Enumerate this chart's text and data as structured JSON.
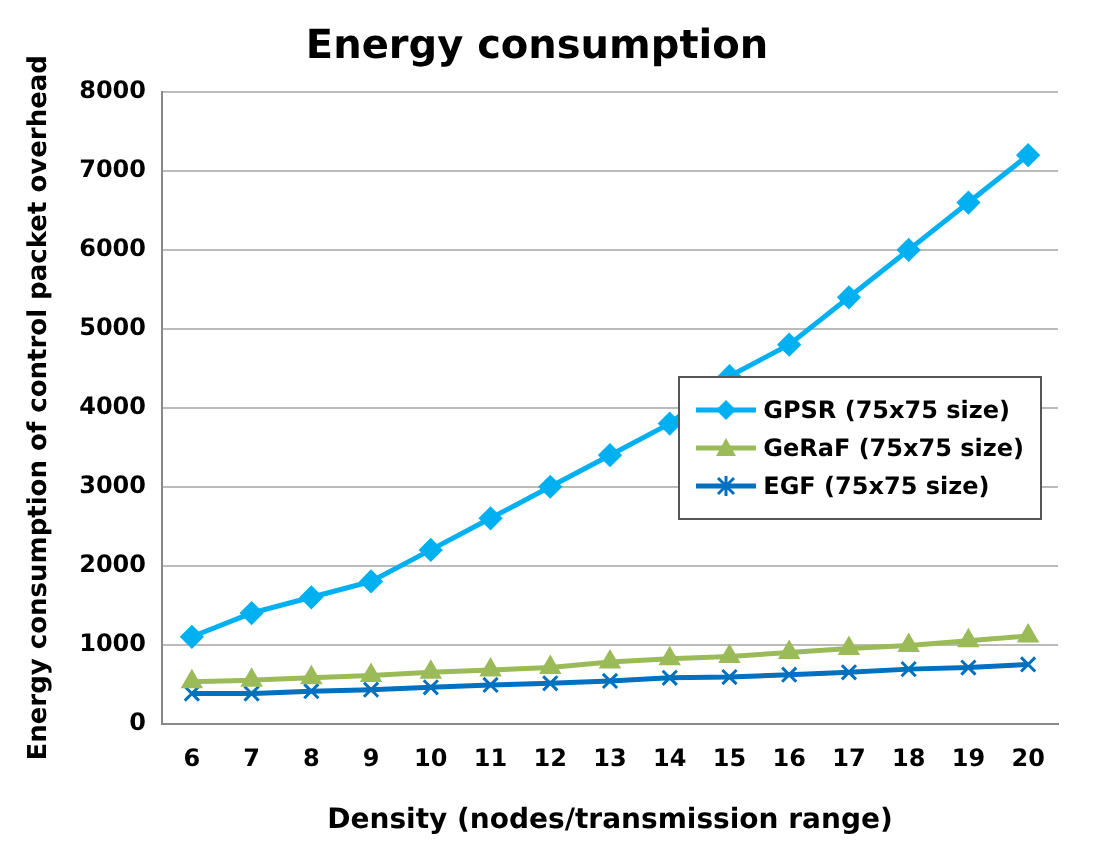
{
  "chart_data": {
    "type": "line",
    "title": "Energy consumption",
    "xlabel": "Density (nodes/transmission range)",
    "ylabel": "Energy consumption of control packet overhead",
    "categories": [
      "6",
      "7",
      "8",
      "9",
      "10",
      "11",
      "12",
      "13",
      "14",
      "15",
      "16",
      "17",
      "18",
      "19",
      "20"
    ],
    "series": [
      {
        "name": "GPSR (75x75 size)",
        "color": "#00b0f0",
        "marker": "diamond",
        "values": [
          1100,
          1400,
          1600,
          1800,
          2200,
          2600,
          3000,
          3400,
          3800,
          4400,
          4800,
          5400,
          6000,
          6600,
          7200
        ]
      },
      {
        "name": "GeRaF (75x75 size)",
        "color": "#9bbb59",
        "marker": "triangle",
        "values": [
          530,
          550,
          580,
          610,
          650,
          680,
          710,
          780,
          820,
          850,
          900,
          950,
          990,
          1050,
          1110
        ]
      },
      {
        "name": "EGF (75x75 size)",
        "color": "#0070c0",
        "marker": "cross",
        "values": [
          380,
          380,
          410,
          430,
          460,
          490,
          510,
          540,
          580,
          590,
          620,
          650,
          690,
          710,
          750
        ]
      }
    ],
    "ylim": [
      0,
      8000
    ],
    "yticks": [
      0,
      1000,
      2000,
      3000,
      4000,
      5000,
      6000,
      7000,
      8000
    ],
    "grid": "y",
    "legend": "right",
    "line_style": "solid"
  }
}
